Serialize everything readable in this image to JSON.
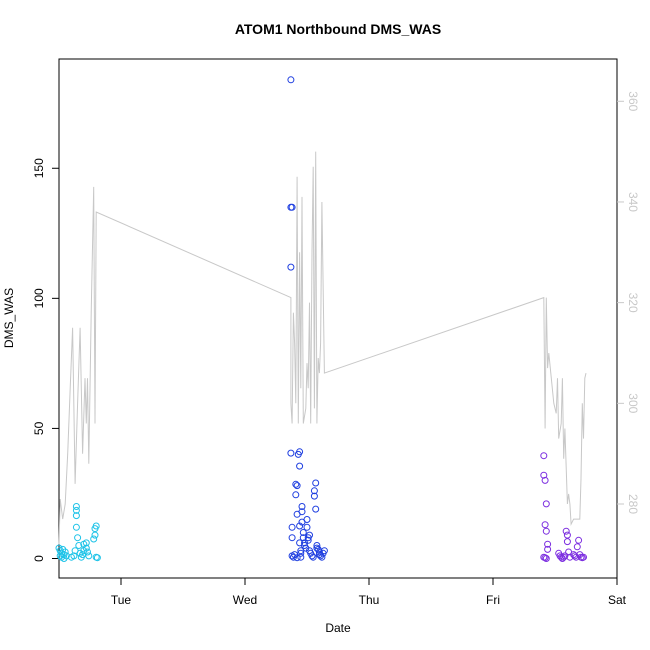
{
  "chart_data": {
    "type": "scatter",
    "title": "ATOM1 Northbound DMS_WAS",
    "xlabel": "Date",
    "ylabel": "DMS_WAS",
    "y2label": "",
    "x_unit": "days",
    "xlim": [
      0.5,
      5.0
    ],
    "ylim": [
      -7.5,
      192
    ],
    "y2lim": [
      265.3,
      368.4
    ],
    "x_ticks": [
      {
        "label": "Tue",
        "value": 1
      },
      {
        "label": "Wed",
        "value": 2
      },
      {
        "label": "Thu",
        "value": 3
      },
      {
        "label": "Fri",
        "value": 4
      },
      {
        "label": "Sat",
        "value": 5
      }
    ],
    "y_ticks": [
      0,
      50,
      100,
      150
    ],
    "y2_ticks": [
      280,
      300,
      320,
      340,
      360
    ],
    "grid": false,
    "legend": "none",
    "colors": {
      "series_1": "#1ec3e8",
      "series_2": "#1f3fe0",
      "series_3": "#7c2ee0",
      "line": "#c8c8c8",
      "frame": "#000000",
      "right_axis": "#c8c8c8"
    },
    "series": [
      {
        "name": "",
        "axis": "left",
        "mark": "circle",
        "color_key": "series_1",
        "points": [
          [
            0.5,
            4
          ],
          [
            0.51,
            3
          ],
          [
            0.51,
            1
          ],
          [
            0.52,
            2
          ],
          [
            0.52,
            0.5
          ],
          [
            0.53,
            3.5
          ],
          [
            0.54,
            1.5
          ],
          [
            0.54,
            0
          ],
          [
            0.55,
            2.5
          ],
          [
            0.56,
            1
          ],
          [
            0.6,
            0.5
          ],
          [
            0.62,
            1
          ],
          [
            0.63,
            3
          ],
          [
            0.64,
            20
          ],
          [
            0.64,
            18.5
          ],
          [
            0.64,
            16.5
          ],
          [
            0.64,
            12
          ],
          [
            0.65,
            8
          ],
          [
            0.66,
            5
          ],
          [
            0.67,
            2
          ],
          [
            0.68,
            0.5
          ],
          [
            0.69,
            1.5
          ],
          [
            0.7,
            3
          ],
          [
            0.7,
            5.5
          ],
          [
            0.72,
            6
          ],
          [
            0.72,
            4
          ],
          [
            0.73,
            2.5
          ],
          [
            0.74,
            1
          ],
          [
            0.78,
            7.5
          ],
          [
            0.79,
            9
          ],
          [
            0.79,
            11.5
          ],
          [
            0.8,
            12.5
          ],
          [
            0.8,
            0.5
          ],
          [
            0.81,
            0.3
          ]
        ]
      },
      {
        "name": "",
        "axis": "left",
        "mark": "circle",
        "color_key": "series_2",
        "points": [
          [
            2.37,
            184
          ],
          [
            2.37,
            135
          ],
          [
            2.38,
            135
          ],
          [
            2.37,
            112
          ],
          [
            2.37,
            40.5
          ],
          [
            2.38,
            1
          ],
          [
            2.38,
            12
          ],
          [
            2.38,
            8
          ],
          [
            2.39,
            0.5
          ],
          [
            2.4,
            1.5
          ],
          [
            2.41,
            24.5
          ],
          [
            2.41,
            28.5
          ],
          [
            2.42,
            28
          ],
          [
            2.42,
            17
          ],
          [
            2.42,
            0.3
          ],
          [
            2.43,
            40
          ],
          [
            2.44,
            41
          ],
          [
            2.44,
            35.5
          ],
          [
            2.44,
            12.5
          ],
          [
            2.44,
            6
          ],
          [
            2.45,
            3
          ],
          [
            2.45,
            2
          ],
          [
            2.45,
            0.5
          ],
          [
            2.46,
            20
          ],
          [
            2.46,
            18
          ],
          [
            2.46,
            14
          ],
          [
            2.47,
            10
          ],
          [
            2.47,
            8
          ],
          [
            2.48,
            6
          ],
          [
            2.48,
            5
          ],
          [
            2.49,
            4
          ],
          [
            2.5,
            12
          ],
          [
            2.5,
            15
          ],
          [
            2.51,
            8
          ],
          [
            2.51,
            7
          ],
          [
            2.52,
            9
          ],
          [
            2.52,
            3
          ],
          [
            2.53,
            2
          ],
          [
            2.54,
            1
          ],
          [
            2.55,
            0.5
          ],
          [
            2.56,
            24
          ],
          [
            2.56,
            26
          ],
          [
            2.57,
            29
          ],
          [
            2.57,
            19
          ],
          [
            2.58,
            5
          ],
          [
            2.58,
            4
          ],
          [
            2.59,
            3.5
          ],
          [
            2.6,
            2.5
          ],
          [
            2.6,
            1.5
          ],
          [
            2.61,
            1
          ],
          [
            2.62,
            0.5
          ],
          [
            2.63,
            2
          ],
          [
            2.64,
            3
          ]
        ]
      },
      {
        "name": "",
        "axis": "left",
        "mark": "circle",
        "color_key": "series_3",
        "points": [
          [
            4.41,
            39.5
          ],
          [
            4.41,
            32
          ],
          [
            4.42,
            30
          ],
          [
            4.43,
            21
          ],
          [
            4.42,
            13
          ],
          [
            4.43,
            10.5
          ],
          [
            4.44,
            5.5
          ],
          [
            4.44,
            3.5
          ],
          [
            4.41,
            0.5
          ],
          [
            4.42,
            0.3
          ],
          [
            4.43,
            0
          ],
          [
            4.53,
            2
          ],
          [
            4.54,
            1
          ],
          [
            4.55,
            0.5
          ],
          [
            4.56,
            0
          ],
          [
            4.57,
            0.5
          ],
          [
            4.58,
            1
          ],
          [
            4.59,
            10.5
          ],
          [
            4.6,
            9
          ],
          [
            4.6,
            6.5
          ],
          [
            4.61,
            2.5
          ],
          [
            4.62,
            0.5
          ],
          [
            4.65,
            1.5
          ],
          [
            4.66,
            1
          ],
          [
            4.67,
            0.5
          ],
          [
            4.68,
            4.5
          ],
          [
            4.69,
            7
          ],
          [
            4.7,
            1.5
          ],
          [
            4.71,
            0.5
          ],
          [
            4.72,
            0.3
          ],
          [
            4.73,
            0.5
          ]
        ]
      },
      {
        "name": "",
        "axis": "right",
        "mark": "line",
        "color_key": "line",
        "points": [
          [
            0.5,
            272
          ],
          [
            0.51,
            281
          ],
          [
            0.53,
            277
          ],
          [
            0.55,
            280
          ],
          [
            0.57,
            290
          ],
          [
            0.59,
            303
          ],
          [
            0.61,
            315
          ],
          [
            0.63,
            284
          ],
          [
            0.65,
            300
          ],
          [
            0.67,
            315
          ],
          [
            0.69,
            290
          ],
          [
            0.71,
            305
          ],
          [
            0.72,
            296
          ],
          [
            0.73,
            305
          ],
          [
            0.74,
            288
          ],
          [
            0.76,
            318
          ],
          [
            0.78,
            343
          ],
          [
            0.79,
            296
          ],
          [
            0.8,
            338
          ],
          [
            2.37,
            321
          ],
          [
            2.37,
            300
          ],
          [
            2.38,
            296
          ],
          [
            2.39,
            318
          ],
          [
            2.4,
            312
          ],
          [
            2.41,
            300
          ],
          [
            2.42,
            345
          ],
          [
            2.43,
            296
          ],
          [
            2.44,
            330
          ],
          [
            2.45,
            303
          ],
          [
            2.46,
            341
          ],
          [
            2.47,
            296
          ],
          [
            2.49,
            299
          ],
          [
            2.5,
            308
          ],
          [
            2.51,
            303
          ],
          [
            2.52,
            320
          ],
          [
            2.53,
            296
          ],
          [
            2.54,
            330
          ],
          [
            2.55,
            347
          ],
          [
            2.56,
            299
          ],
          [
            2.57,
            350
          ],
          [
            2.58,
            296
          ],
          [
            2.59,
            309
          ],
          [
            2.6,
            306
          ],
          [
            2.61,
            312
          ],
          [
            2.62,
            340
          ],
          [
            2.64,
            306
          ],
          [
            4.41,
            321
          ],
          [
            4.42,
            295
          ],
          [
            4.43,
            321
          ],
          [
            4.44,
            307
          ],
          [
            4.45,
            310
          ],
          [
            4.47,
            305
          ],
          [
            4.49,
            300
          ],
          [
            4.51,
            298
          ],
          [
            4.52,
            305
          ],
          [
            4.53,
            293
          ],
          [
            4.55,
            296
          ],
          [
            4.56,
            305
          ],
          [
            4.57,
            289
          ],
          [
            4.58,
            295
          ],
          [
            4.6,
            280
          ],
          [
            4.61,
            282
          ],
          [
            4.62,
            280
          ],
          [
            4.63,
            276
          ],
          [
            4.65,
            277
          ],
          [
            4.7,
            277
          ],
          [
            4.71,
            285
          ],
          [
            4.72,
            300
          ],
          [
            4.73,
            293
          ],
          [
            4.74,
            305
          ],
          [
            4.75,
            306
          ]
        ]
      }
    ]
  }
}
